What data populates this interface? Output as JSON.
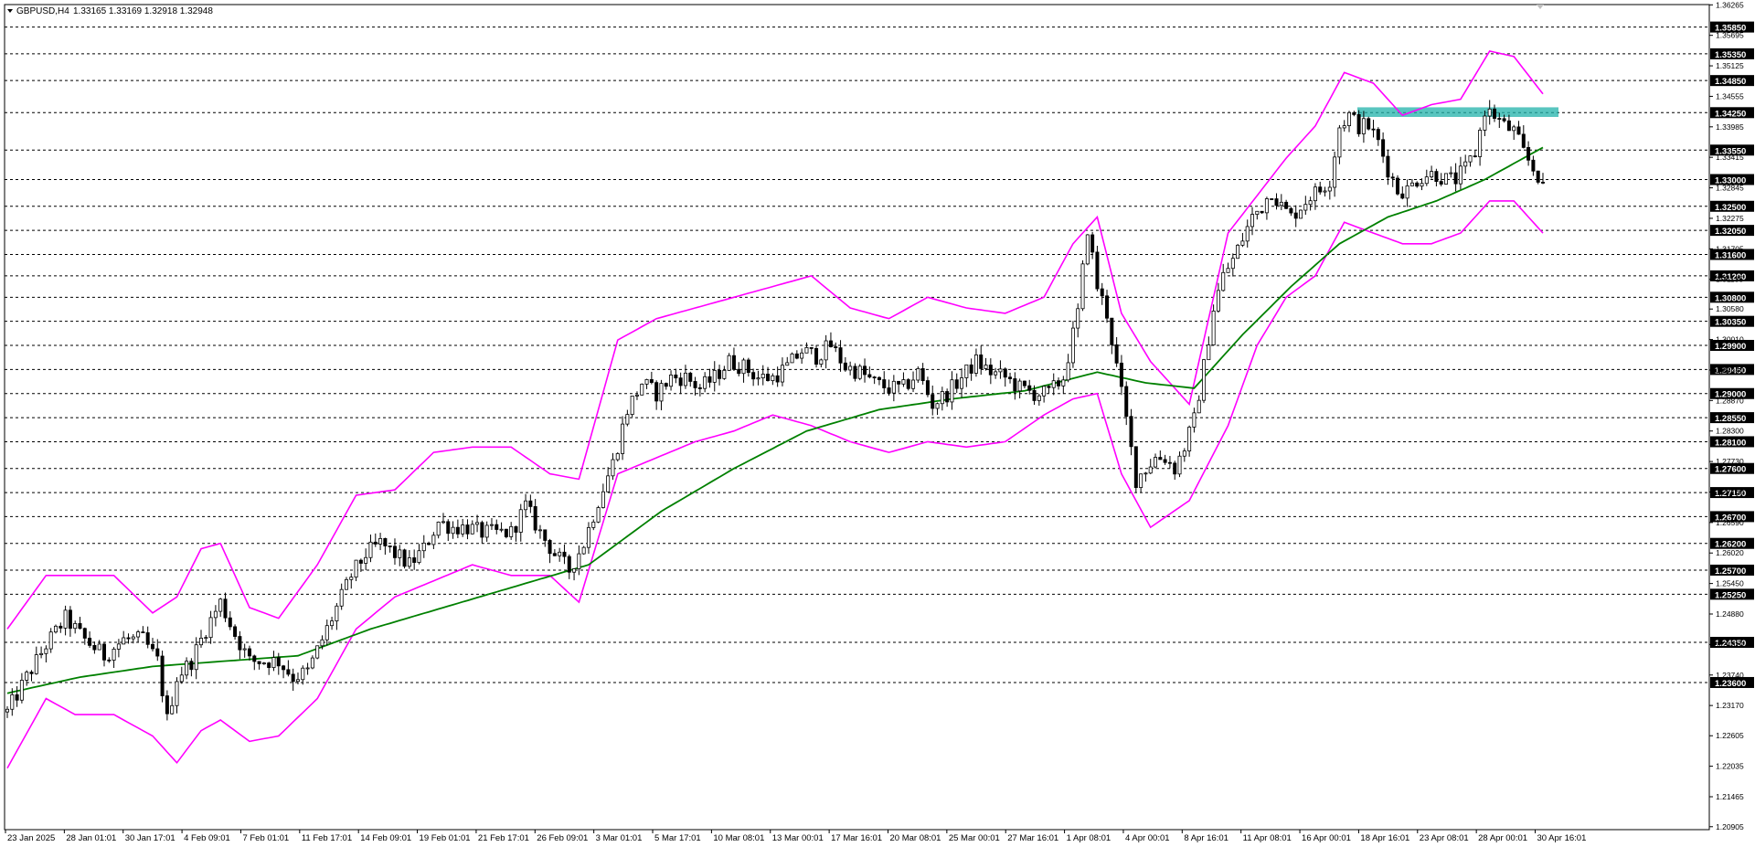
{
  "header": {
    "symbol": "GBPUSD,H4",
    "ohlc": "1.33165 1.33169 1.32918 1.32948"
  },
  "colors": {
    "background": "#ffffff",
    "candle": "#000000",
    "bollinger": "#ff00ff",
    "moving_average": "#008000",
    "resistance_zone": "#20b2aa",
    "level_label_bg": "#000000",
    "level_line": "#000000"
  },
  "chart_data": {
    "type": "candlestick",
    "ylim": [
      1.2085,
      1.3627
    ],
    "y_tick_labels": [
      "1.36265",
      "1.35695",
      "1.35125",
      "1.34555",
      "1.33985",
      "1.33415",
      "1.32845",
      "1.32275",
      "1.31705",
      "1.31135",
      "1.30580",
      "1.30010",
      "1.29440",
      "1.28870",
      "1.28300",
      "1.27730",
      "1.27160",
      "1.26590",
      "1.26020",
      "1.25450",
      "1.24880",
      "1.24310",
      "1.23740",
      "1.23170",
      "1.22605",
      "1.22035",
      "1.21465",
      "1.20905"
    ],
    "horizontal_levels": [
      "1.35850",
      "1.35350",
      "1.34850",
      "1.34250",
      "1.33550",
      "1.33000",
      "1.32500",
      "1.32050",
      "1.31600",
      "1.31200",
      "1.30800",
      "1.30350",
      "1.29900",
      "1.29450",
      "1.29000",
      "1.28550",
      "1.28100",
      "1.27600",
      "1.27150",
      "1.26700",
      "1.26200",
      "1.25700",
      "1.25250",
      "1.24350",
      "1.23600"
    ],
    "x_tick_labels": [
      "23 Jan 2025",
      "28 Jan 01:01",
      "30 Jan 17:01",
      "4 Feb 09:01",
      "7 Feb 01:01",
      "11 Feb 17:01",
      "14 Feb 09:01",
      "19 Feb 01:01",
      "21 Feb 17:01",
      "26 Feb 09:01",
      "3 Mar 01:01",
      "5 Mar 17:01",
      "10 Mar 08:01",
      "13 Mar 00:01",
      "17 Mar 16:01",
      "20 Mar 08:01",
      "25 Mar 00:01",
      "27 Mar 16:01",
      "1 Apr 08:01",
      "4 Apr 00:01",
      "8 Apr 16:01",
      "11 Apr 08:01",
      "16 Apr 00:01",
      "18 Apr 16:01",
      "23 Apr 08:01",
      "28 Apr 00:01",
      "30 Apr 16:01"
    ],
    "close_path": [
      [
        0,
        1.2305
      ],
      [
        4,
        1.237
      ],
      [
        8,
        1.243
      ],
      [
        12,
        1.248
      ],
      [
        16,
        1.244
      ],
      [
        20,
        1.241
      ],
      [
        24,
        1.244
      ],
      [
        28,
        1.244
      ],
      [
        31,
        1.24
      ],
      [
        33,
        1.229
      ],
      [
        35,
        1.237
      ],
      [
        38,
        1.24
      ],
      [
        41,
        1.246
      ],
      [
        44,
        1.251
      ],
      [
        47,
        1.245
      ],
      [
        50,
        1.24
      ],
      [
        53,
        1.24
      ],
      [
        56,
        1.24
      ],
      [
        59,
        1.237
      ],
      [
        62,
        1.238
      ],
      [
        65,
        1.244
      ],
      [
        68,
        1.25
      ],
      [
        71,
        1.256
      ],
      [
        74,
        1.26
      ],
      [
        77,
        1.262
      ],
      [
        80,
        1.26
      ],
      [
        83,
        1.258
      ],
      [
        86,
        1.261
      ],
      [
        89,
        1.266
      ],
      [
        92,
        1.265
      ],
      [
        95,
        1.265
      ],
      [
        98,
        1.264
      ],
      [
        101,
        1.264
      ],
      [
        104,
        1.264
      ],
      [
        107,
        1.269
      ],
      [
        110,
        1.264
      ],
      [
        113,
        1.26
      ],
      [
        116,
        1.257
      ],
      [
        119,
        1.262
      ],
      [
        122,
        1.27
      ],
      [
        125,
        1.277
      ],
      [
        128,
        1.287
      ],
      [
        131,
        1.292
      ],
      [
        134,
        1.29
      ],
      [
        137,
        1.293
      ],
      [
        140,
        1.293
      ],
      [
        143,
        1.291
      ],
      [
        146,
        1.293
      ],
      [
        149,
        1.296
      ],
      [
        152,
        1.295
      ],
      [
        155,
        1.293
      ],
      [
        158,
        1.293
      ],
      [
        161,
        1.295
      ],
      [
        164,
        1.298
      ],
      [
        167,
        1.297
      ],
      [
        170,
        1.299
      ],
      [
        173,
        1.295
      ],
      [
        176,
        1.294
      ],
      [
        179,
        1.292
      ],
      [
        182,
        1.291
      ],
      [
        185,
        1.291
      ],
      [
        188,
        1.294
      ],
      [
        191,
        1.288
      ],
      [
        194,
        1.29
      ],
      [
        197,
        1.293
      ],
      [
        200,
        1.296
      ],
      [
        203,
        1.294
      ],
      [
        206,
        1.293
      ],
      [
        209,
        1.291
      ],
      [
        212,
        1.29
      ],
      [
        215,
        1.29
      ],
      [
        218,
        1.293
      ],
      [
        221,
        1.305
      ],
      [
        223,
        1.321
      ],
      [
        225,
        1.31
      ],
      [
        227,
        1.305
      ],
      [
        229,
        1.295
      ],
      [
        231,
        1.285
      ],
      [
        233,
        1.274
      ],
      [
        235,
        1.276
      ],
      [
        237,
        1.278
      ],
      [
        239,
        1.278
      ],
      [
        241,
        1.276
      ],
      [
        243,
        1.28
      ],
      [
        245,
        1.285
      ],
      [
        247,
        1.295
      ],
      [
        249,
        1.306
      ],
      [
        251,
        1.312
      ],
      [
        253,
        1.315
      ],
      [
        255,
        1.319
      ],
      [
        257,
        1.323
      ],
      [
        259,
        1.325
      ],
      [
        261,
        1.328
      ],
      [
        263,
        1.325
      ],
      [
        265,
        1.323
      ],
      [
        267,
        1.325
      ],
      [
        269,
        1.327
      ],
      [
        271,
        1.328
      ],
      [
        273,
        1.33
      ],
      [
        275,
        1.34
      ],
      [
        277,
        1.342
      ],
      [
        279,
        1.34
      ],
      [
        281,
        1.34
      ],
      [
        283,
        1.337
      ],
      [
        285,
        1.332
      ],
      [
        287,
        1.328
      ],
      [
        289,
        1.328
      ],
      [
        291,
        1.33
      ],
      [
        293,
        1.331
      ],
      [
        295,
        1.331
      ],
      [
        297,
        1.33
      ],
      [
        299,
        1.33
      ],
      [
        301,
        1.332
      ],
      [
        303,
        1.335
      ],
      [
        305,
        1.343
      ],
      [
        307,
        1.342
      ],
      [
        309,
        1.34
      ],
      [
        311,
        1.339
      ],
      [
        313,
        1.335
      ],
      [
        315,
        1.332
      ],
      [
        317,
        1.3295
      ]
    ],
    "ma_path": [
      [
        0,
        1.234
      ],
      [
        15,
        1.237
      ],
      [
        30,
        1.239
      ],
      [
        45,
        1.24
      ],
      [
        60,
        1.241
      ],
      [
        75,
        1.246
      ],
      [
        90,
        1.25
      ],
      [
        105,
        1.254
      ],
      [
        120,
        1.258
      ],
      [
        135,
        1.268
      ],
      [
        150,
        1.276
      ],
      [
        165,
        1.283
      ],
      [
        180,
        1.287
      ],
      [
        195,
        1.289
      ],
      [
        210,
        1.2905
      ],
      [
        225,
        1.294
      ],
      [
        235,
        1.292
      ],
      [
        245,
        1.291
      ],
      [
        255,
        1.301
      ],
      [
        265,
        1.31
      ],
      [
        275,
        1.318
      ],
      [
        285,
        1.323
      ],
      [
        295,
        1.326
      ],
      [
        305,
        1.33
      ],
      [
        317,
        1.336
      ]
    ],
    "bb_upper": [
      [
        0,
        1.246
      ],
      [
        8,
        1.256
      ],
      [
        14,
        1.256
      ],
      [
        22,
        1.256
      ],
      [
        30,
        1.249
      ],
      [
        35,
        1.252
      ],
      [
        40,
        1.261
      ],
      [
        44,
        1.262
      ],
      [
        50,
        1.25
      ],
      [
        56,
        1.248
      ],
      [
        64,
        1.258
      ],
      [
        72,
        1.271
      ],
      [
        80,
        1.272
      ],
      [
        88,
        1.279
      ],
      [
        96,
        1.28
      ],
      [
        104,
        1.28
      ],
      [
        112,
        1.275
      ],
      [
        118,
        1.274
      ],
      [
        126,
        1.3
      ],
      [
        134,
        1.304
      ],
      [
        142,
        1.306
      ],
      [
        150,
        1.308
      ],
      [
        158,
        1.31
      ],
      [
        166,
        1.312
      ],
      [
        174,
        1.306
      ],
      [
        182,
        1.304
      ],
      [
        190,
        1.308
      ],
      [
        198,
        1.306
      ],
      [
        206,
        1.305
      ],
      [
        214,
        1.308
      ],
      [
        220,
        1.318
      ],
      [
        225,
        1.323
      ],
      [
        230,
        1.305
      ],
      [
        236,
        1.296
      ],
      [
        244,
        1.288
      ],
      [
        252,
        1.32
      ],
      [
        258,
        1.327
      ],
      [
        264,
        1.334
      ],
      [
        270,
        1.34
      ],
      [
        276,
        1.35
      ],
      [
        282,
        1.348
      ],
      [
        288,
        1.342
      ],
      [
        294,
        1.344
      ],
      [
        300,
        1.345
      ],
      [
        306,
        1.354
      ],
      [
        311,
        1.353
      ],
      [
        317,
        1.346
      ]
    ],
    "bb_lower": [
      [
        0,
        1.22
      ],
      [
        8,
        1.233
      ],
      [
        14,
        1.23
      ],
      [
        22,
        1.23
      ],
      [
        30,
        1.226
      ],
      [
        35,
        1.221
      ],
      [
        40,
        1.227
      ],
      [
        44,
        1.229
      ],
      [
        50,
        1.225
      ],
      [
        56,
        1.226
      ],
      [
        64,
        1.233
      ],
      [
        72,
        1.246
      ],
      [
        80,
        1.252
      ],
      [
        88,
        1.255
      ],
      [
        96,
        1.258
      ],
      [
        104,
        1.256
      ],
      [
        112,
        1.256
      ],
      [
        118,
        1.251
      ],
      [
        126,
        1.275
      ],
      [
        134,
        1.278
      ],
      [
        142,
        1.281
      ],
      [
        150,
        1.283
      ],
      [
        158,
        1.286
      ],
      [
        166,
        1.284
      ],
      [
        174,
        1.281
      ],
      [
        182,
        1.279
      ],
      [
        190,
        1.281
      ],
      [
        198,
        1.28
      ],
      [
        206,
        1.281
      ],
      [
        214,
        1.286
      ],
      [
        220,
        1.289
      ],
      [
        225,
        1.29
      ],
      [
        230,
        1.275
      ],
      [
        236,
        1.265
      ],
      [
        244,
        1.27
      ],
      [
        252,
        1.284
      ],
      [
        258,
        1.299
      ],
      [
        264,
        1.308
      ],
      [
        270,
        1.312
      ],
      [
        276,
        1.322
      ],
      [
        282,
        1.32
      ],
      [
        288,
        1.318
      ],
      [
        294,
        1.318
      ],
      [
        300,
        1.32
      ],
      [
        306,
        1.326
      ],
      [
        311,
        1.326
      ],
      [
        317,
        1.32
      ]
    ],
    "resistance_zone": [
      1.3417,
      1.3435
    ],
    "last_price": 1.32948
  }
}
